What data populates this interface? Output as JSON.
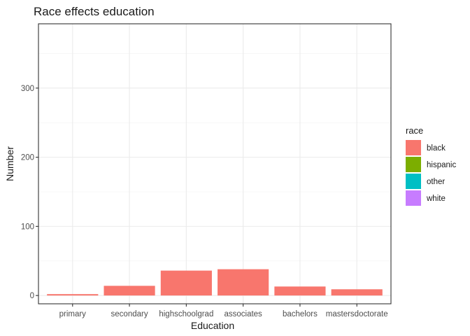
{
  "chart_data": {
    "type": "bar",
    "title": "Race effects education",
    "xlabel": "Education",
    "ylabel": "Number",
    "categories": [
      "primary",
      "secondary",
      "highschoolgrad",
      "associates",
      "bachelors",
      "mastersdoctorate"
    ],
    "series": [
      {
        "name": "black",
        "color": "#F8766D",
        "values": [
          2,
          14,
          36,
          38,
          13,
          9
        ]
      },
      {
        "name": "hispanic",
        "color": "#7CAE00",
        "values": [
          0,
          0,
          0,
          0,
          0,
          0
        ]
      },
      {
        "name": "other",
        "color": "#00BFC4",
        "values": [
          0,
          0,
          0,
          0,
          0,
          0
        ]
      },
      {
        "name": "white",
        "color": "#C77CFF",
        "values": [
          0,
          0,
          0,
          0,
          0,
          0
        ]
      }
    ],
    "ylim": [
      -12,
      393
    ],
    "yticks": [
      0,
      100,
      200,
      300
    ],
    "grid": true,
    "legend": {
      "title": "race",
      "position": "right"
    }
  }
}
